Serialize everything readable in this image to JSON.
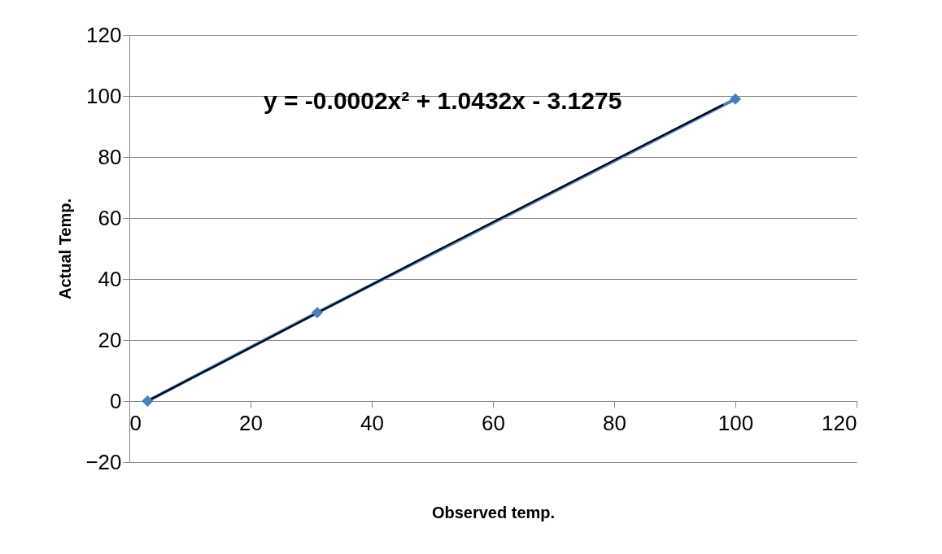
{
  "chart_data": {
    "type": "line",
    "xlabel": "Observed temp.",
    "ylabel": "Actual Temp.",
    "series": [
      {
        "color": "#4a7ebb",
        "marker": "diamond",
        "x": [
          3,
          31,
          100
        ],
        "values": [
          0,
          29,
          99
        ]
      },
      {
        "color": "#000000",
        "marker": "none",
        "x": [
          3,
          50,
          98
        ],
        "values": [
          0,
          48.5,
          97.2
        ]
      }
    ],
    "annotations": [
      "y = -0.0002x² + 1.0432x - 3.1275"
    ],
    "xlim": [
      0,
      120
    ],
    "xticks": [
      0,
      20,
      40,
      60,
      80,
      100,
      120
    ],
    "ylim": [
      -20,
      120
    ],
    "yticks": [
      -20,
      0,
      20,
      40,
      60,
      80,
      100,
      120
    ],
    "grid": "y"
  }
}
